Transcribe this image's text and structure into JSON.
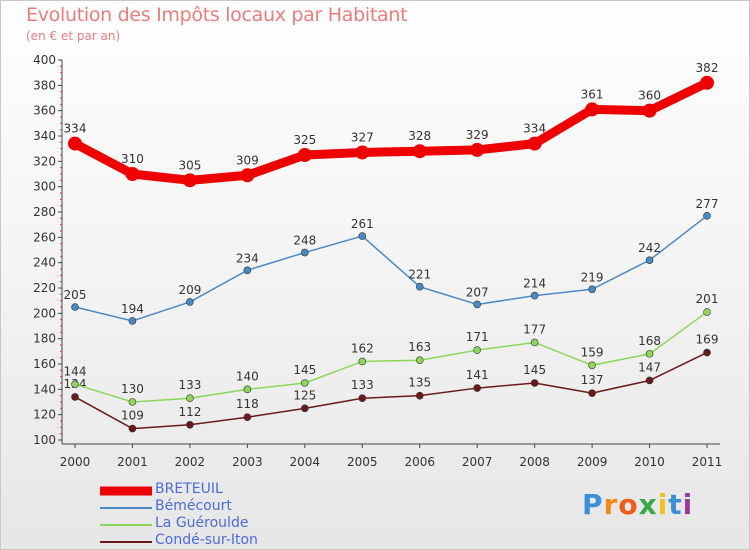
{
  "chart_data": {
    "type": "line",
    "title": "Evolution des Impôts locaux par Habitant",
    "subtitle": "(en € et par an)",
    "xlabel": "",
    "ylabel": "",
    "categories": [
      "2000",
      "2001",
      "2002",
      "2003",
      "2004",
      "2005",
      "2006",
      "2007",
      "2008",
      "2009",
      "2010",
      "2011"
    ],
    "yticks": [
      100,
      120,
      140,
      160,
      180,
      200,
      220,
      240,
      260,
      280,
      300,
      320,
      340,
      360,
      380,
      400
    ],
    "ylim": [
      100,
      400
    ],
    "grid": false,
    "series": [
      {
        "name": "BRETEUIL",
        "color": "#ee0000",
        "values": [
          334,
          310,
          305,
          309,
          325,
          327,
          328,
          329,
          334,
          361,
          360,
          382
        ]
      },
      {
        "name": "Bémécourt",
        "color": "#4a8ac4",
        "values": [
          205,
          194,
          209,
          234,
          248,
          261,
          221,
          207,
          214,
          219,
          242,
          277
        ]
      },
      {
        "name": "La Guéroulde",
        "color": "#8cd65a",
        "values": [
          144,
          130,
          133,
          140,
          145,
          162,
          163,
          171,
          177,
          159,
          168,
          201
        ]
      },
      {
        "name": "Condé-sur-Iton",
        "color": "#6a1a1a",
        "values": [
          134,
          109,
          112,
          118,
          125,
          133,
          135,
          141,
          145,
          137,
          147,
          169
        ]
      }
    ],
    "legend_position": "bottom-left"
  },
  "logo": {
    "letters": [
      "P",
      "r",
      "o",
      "x",
      "i",
      "t",
      "i"
    ],
    "colors": [
      "#3a8fd8",
      "#f08a1a",
      "#ee5a1a",
      "#3aa64a",
      "#f0c020",
      "#3a8fd8",
      "#9a3aa0"
    ]
  }
}
